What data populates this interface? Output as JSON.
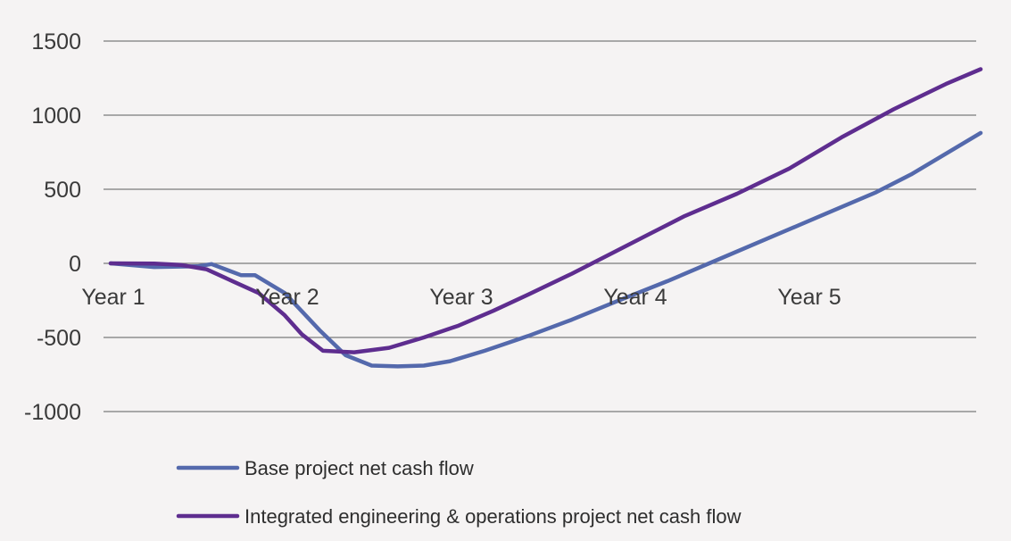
{
  "chart_data": {
    "type": "line",
    "title": "",
    "xlabel": "",
    "ylabel": "",
    "ylim": [
      -1000,
      1500
    ],
    "yticks": [
      1500,
      1000,
      500,
      0,
      -500,
      -1000
    ],
    "xlim": [
      1,
      6.0
    ],
    "x_tick_labels": [
      {
        "x": 1,
        "label": "Year 1"
      },
      {
        "x": 2,
        "label": "Year 2"
      },
      {
        "x": 3,
        "label": "Year 3"
      },
      {
        "x": 4,
        "label": "Year 4"
      },
      {
        "x": 5,
        "label": "Year 5"
      }
    ],
    "grid": true,
    "legend_position": "bottom",
    "series": [
      {
        "name": "Base project net cash flow",
        "color": "#5469ac",
        "x": [
          1.0,
          1.25,
          1.5,
          1.58,
          1.75,
          1.83,
          2.0,
          2.2,
          2.35,
          2.5,
          2.65,
          2.8,
          2.95,
          3.15,
          3.4,
          3.65,
          3.9,
          4.2,
          4.5,
          4.8,
          5.1,
          5.4,
          5.6,
          5.8,
          6.0
        ],
        "y": [
          0,
          -25,
          -20,
          -5,
          -80,
          -80,
          -200,
          -450,
          -620,
          -690,
          -695,
          -690,
          -660,
          -590,
          -490,
          -380,
          -260,
          -120,
          30,
          180,
          330,
          480,
          600,
          740,
          880
        ]
      },
      {
        "name": "Integrated engineering & operations project net cash flow",
        "color": "#5e2d8f",
        "x": [
          1.0,
          1.25,
          1.4,
          1.55,
          1.7,
          1.85,
          2.0,
          2.1,
          2.22,
          2.4,
          2.6,
          2.8,
          3.0,
          3.2,
          3.4,
          3.65,
          3.9,
          4.1,
          4.3,
          4.6,
          4.9,
          5.2,
          5.5,
          5.8,
          6.0
        ],
        "y": [
          0,
          -2,
          -10,
          -40,
          -120,
          -200,
          -350,
          -480,
          -590,
          -600,
          -570,
          -500,
          -420,
          -320,
          -210,
          -70,
          80,
          200,
          320,
          470,
          640,
          850,
          1040,
          1210,
          1310
        ]
      }
    ]
  }
}
